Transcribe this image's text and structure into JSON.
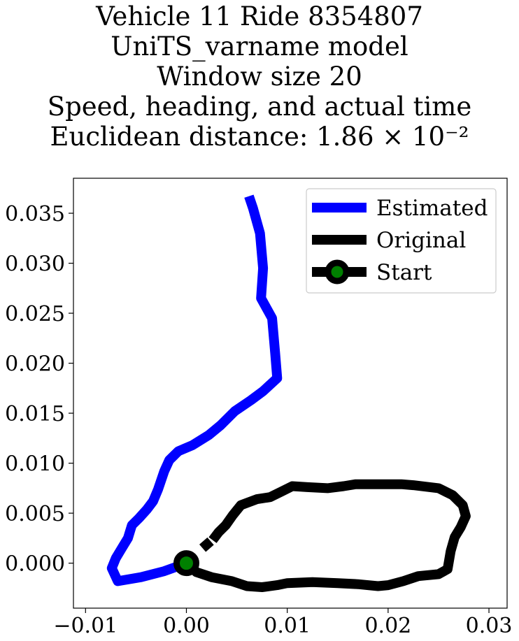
{
  "title": {
    "lines": [
      "Vehicle 11 Ride 8354807",
      "UniTS_varname model",
      "Window size 20",
      "Speed, heading, and actual time",
      "Euclidean distance: 1.86 × 10⁻²"
    ]
  },
  "chart_data": {
    "type": "line",
    "xlim": [
      -0.0112,
      0.0318
    ],
    "ylim": [
      -0.0045,
      0.0385
    ],
    "x_ticks": [
      -0.01,
      0.0,
      0.01,
      0.02,
      0.03
    ],
    "x_tick_labels": [
      "−0.01",
      "0.00",
      "0.01",
      "0.02",
      "0.03"
    ],
    "y_ticks": [
      0.0,
      0.005,
      0.01,
      0.015,
      0.02,
      0.025,
      0.03,
      0.035
    ],
    "y_tick_labels": [
      "0.000",
      "0.005",
      "0.010",
      "0.015",
      "0.020",
      "0.025",
      "0.030",
      "0.035"
    ],
    "grid": false,
    "legend": {
      "placement": "upper-right",
      "entries": [
        {
          "label": "Estimated",
          "color": "#0000ff",
          "marker": false
        },
        {
          "label": "Original",
          "color": "#000000",
          "marker": false
        },
        {
          "label": "Start",
          "color": "#000000",
          "marker": true,
          "marker_face": "#008000"
        }
      ]
    },
    "series": [
      {
        "name": "Estimated",
        "color": "#0000ff",
        "points": [
          [
            0.0,
            0.0
          ],
          [
            -0.0022,
            -0.0008
          ],
          [
            -0.0045,
            -0.0014
          ],
          [
            -0.0068,
            -0.0018
          ],
          [
            -0.0074,
            -0.0005
          ],
          [
            -0.007,
            0.0005
          ],
          [
            -0.0064,
            0.0015
          ],
          [
            -0.0058,
            0.0025
          ],
          [
            -0.0054,
            0.0038
          ],
          [
            -0.0047,
            0.0045
          ],
          [
            -0.0039,
            0.0054
          ],
          [
            -0.0033,
            0.0062
          ],
          [
            -0.0028,
            0.0074
          ],
          [
            -0.0022,
            0.0092
          ],
          [
            -0.0017,
            0.0103
          ],
          [
            -0.0008,
            0.0112
          ],
          [
            0.0006,
            0.0118
          ],
          [
            0.0022,
            0.0128
          ],
          [
            0.0034,
            0.0138
          ],
          [
            0.0048,
            0.0152
          ],
          [
            0.0064,
            0.0163
          ],
          [
            0.0076,
            0.0172
          ],
          [
            0.009,
            0.0185
          ],
          [
            0.0088,
            0.021
          ],
          [
            0.0085,
            0.0245
          ],
          [
            0.0074,
            0.0265
          ],
          [
            0.0076,
            0.0295
          ],
          [
            0.0073,
            0.033
          ],
          [
            0.0066,
            0.0355
          ],
          [
            0.0062,
            0.0367
          ]
        ]
      },
      {
        "name": "Original",
        "color": "#000000",
        "segments": [
          [
            [
              0.0016,
              0.0015
            ],
            [
              0.0024,
              0.0022
            ]
          ],
          [
            [
              0.0026,
              0.0023
            ],
            [
              0.0032,
              0.0031
            ],
            [
              0.0039,
              0.0038
            ],
            [
              0.0046,
              0.0048
            ],
            [
              0.0054,
              0.0058
            ],
            [
              0.007,
              0.0064
            ],
            [
              0.0083,
              0.0066
            ],
            [
              0.0095,
              0.0072
            ],
            [
              0.0105,
              0.0077
            ],
            [
              0.012,
              0.0076
            ],
            [
              0.014,
              0.0075
            ],
            [
              0.0156,
              0.0077
            ],
            [
              0.0168,
              0.0079
            ],
            [
              0.019,
              0.0079
            ],
            [
              0.0213,
              0.0079
            ],
            [
              0.0225,
              0.0078
            ],
            [
              0.025,
              0.0075
            ],
            [
              0.0264,
              0.0068
            ],
            [
              0.0274,
              0.0058
            ],
            [
              0.0277,
              0.0047
            ],
            [
              0.0272,
              0.0036
            ],
            [
              0.0266,
              0.0026
            ],
            [
              0.0262,
              0.0012
            ],
            [
              0.0259,
              -0.0006
            ],
            [
              0.025,
              -0.0011
            ],
            [
              0.023,
              -0.0013
            ],
            [
              0.0215,
              -0.0018
            ],
            [
              0.02,
              -0.0022
            ],
            [
              0.019,
              -0.0023
            ],
            [
              0.017,
              -0.0021
            ],
            [
              0.015,
              -0.002
            ],
            [
              0.0125,
              -0.0019
            ],
            [
              0.01,
              -0.002
            ],
            [
              0.009,
              -0.0022
            ],
            [
              0.0075,
              -0.0024
            ],
            [
              0.006,
              -0.0023
            ],
            [
              0.0045,
              -0.0018
            ],
            [
              0.0025,
              -0.0014
            ],
            [
              0.001,
              -0.0009
            ],
            [
              0.0,
              0.0
            ]
          ]
        ]
      }
    ],
    "start_point": [
      0.0,
      0.0
    ]
  }
}
